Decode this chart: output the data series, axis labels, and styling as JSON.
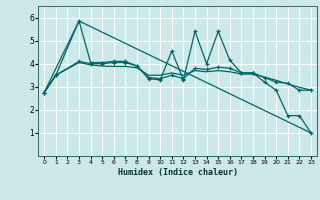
{
  "xlabel": "Humidex (Indice chaleur)",
  "bg_color": "#cce8e8",
  "grid_color": "#ffffff",
  "line_color": "#006666",
  "xlim": [
    -0.5,
    23.5
  ],
  "ylim": [
    0,
    6.5
  ],
  "xticks": [
    0,
    1,
    2,
    3,
    4,
    5,
    6,
    7,
    8,
    9,
    10,
    11,
    12,
    13,
    14,
    15,
    16,
    17,
    18,
    19,
    20,
    21,
    22,
    23
  ],
  "yticks": [
    1,
    2,
    3,
    4,
    5,
    6
  ],
  "series1_x": [
    0,
    1,
    3,
    4,
    5,
    6,
    7,
    8,
    9,
    10,
    11,
    12,
    13,
    14,
    15,
    16,
    17,
    18,
    19,
    20,
    21,
    22,
    23
  ],
  "series1_y": [
    2.75,
    3.5,
    5.85,
    4.05,
    4.05,
    4.1,
    4.1,
    3.9,
    3.35,
    3.3,
    4.55,
    3.3,
    5.4,
    4.0,
    5.4,
    4.15,
    3.6,
    3.6,
    3.2,
    2.85,
    1.75,
    1.75,
    1.0
  ],
  "series2_x": [
    0,
    3,
    23
  ],
  "series2_y": [
    2.75,
    5.85,
    1.0
  ],
  "series3_x": [
    0,
    1,
    3,
    4,
    5,
    6,
    7,
    8,
    9,
    10,
    11,
    12,
    13,
    14,
    15,
    16,
    17,
    18,
    19,
    20,
    21,
    22,
    23
  ],
  "series3_y": [
    2.75,
    3.5,
    4.1,
    4.0,
    4.0,
    4.05,
    4.05,
    3.9,
    3.4,
    3.35,
    3.5,
    3.35,
    3.8,
    3.75,
    3.85,
    3.8,
    3.6,
    3.6,
    3.4,
    3.2,
    3.15,
    2.85,
    2.85
  ],
  "series4_x": [
    0,
    1,
    3,
    4,
    5,
    6,
    7,
    8,
    9,
    10,
    11,
    12,
    13,
    14,
    15,
    16,
    17,
    18,
    19,
    20,
    21,
    22,
    23
  ],
  "series4_y": [
    2.75,
    3.5,
    4.05,
    3.95,
    3.9,
    3.88,
    3.88,
    3.82,
    3.5,
    3.5,
    3.6,
    3.5,
    3.7,
    3.65,
    3.7,
    3.65,
    3.55,
    3.55,
    3.42,
    3.28,
    3.12,
    2.98,
    2.85
  ]
}
